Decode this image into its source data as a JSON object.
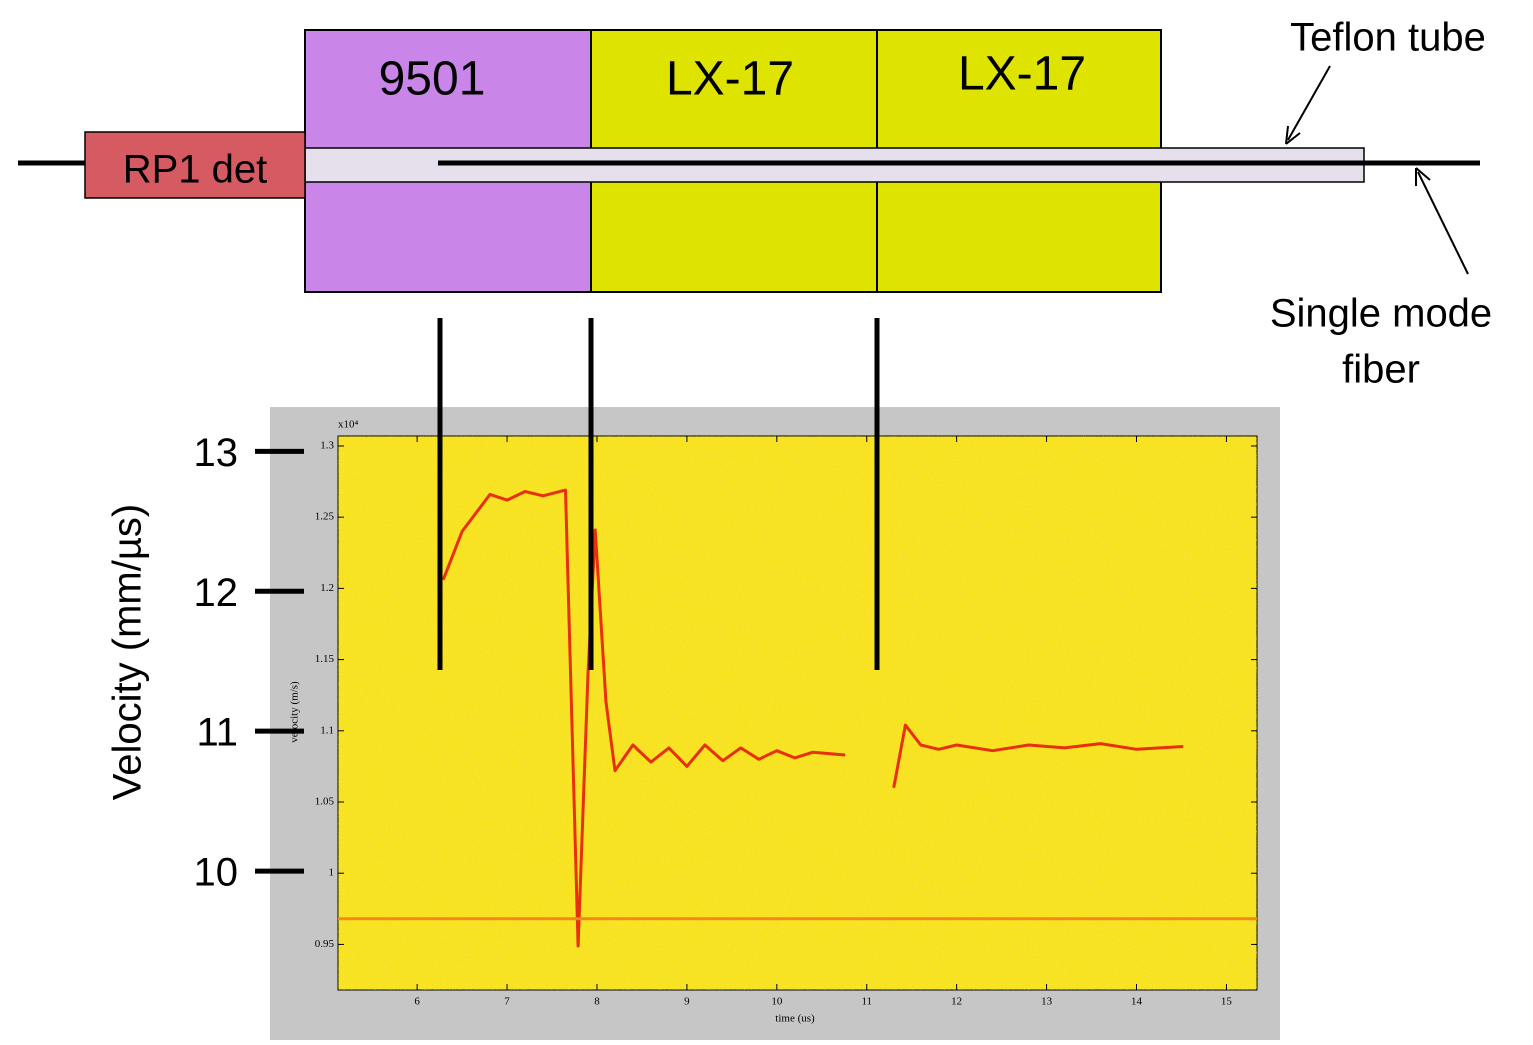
{
  "diagram": {
    "detonator": "RP1 det",
    "segments": [
      "9501",
      "LX-17",
      "LX-17"
    ],
    "tube_label": "Teflon tube",
    "fiber_label": [
      "Single mode",
      "fiber"
    ]
  },
  "chart_data": {
    "type": "line",
    "x_label": "time (us)",
    "y_label": "velocity (m/s)",
    "y_exponent": "x10⁴",
    "y2_label": "Velocity (mm/µs)",
    "xlim": [
      5.12,
      15.34
    ],
    "xticks": [
      6,
      7,
      8,
      9,
      10,
      11,
      12,
      13,
      14,
      15
    ],
    "ylim": [
      0.918,
      1.307
    ],
    "yticks": [
      0.95,
      1,
      1.05,
      1.1,
      1.15,
      1.2,
      1.25,
      1.3
    ],
    "y2lim": [
      9.15,
      13.11
    ],
    "y2ticks": [
      10,
      11,
      12,
      13
    ],
    "series": [
      {
        "color": "#e8300c",
        "x": [
          6.29,
          6.5,
          6.81,
          7.0,
          7.2,
          7.4,
          7.65,
          7.68,
          7.79,
          7.9,
          7.98,
          8.1,
          8.2,
          8.4,
          8.6,
          8.8,
          9.0,
          9.2,
          9.4,
          9.6,
          9.8,
          10.0,
          10.2,
          10.4,
          10.76,
          11.0,
          11.3,
          11.43,
          11.6,
          11.8,
          12.0,
          12.4,
          12.8,
          13.2,
          13.6,
          14.0,
          14.52
        ],
        "values": [
          1.206,
          1.24,
          1.266,
          1.262,
          1.268,
          1.265,
          1.269,
          1.2,
          0.949,
          1.14,
          1.241,
          1.12,
          1.072,
          1.09,
          1.078,
          1.088,
          1.075,
          1.09,
          1.079,
          1.088,
          1.08,
          1.086,
          1.081,
          1.085,
          1.083,
          null,
          1.06,
          1.104,
          1.09,
          1.087,
          1.09,
          1.086,
          1.09,
          1.088,
          1.091,
          1.087,
          1.089
        ]
      },
      {
        "color": "#f08a1a",
        "x": [
          5.12,
          15.34
        ],
        "values": [
          0.968,
          0.968
        ]
      }
    ]
  }
}
